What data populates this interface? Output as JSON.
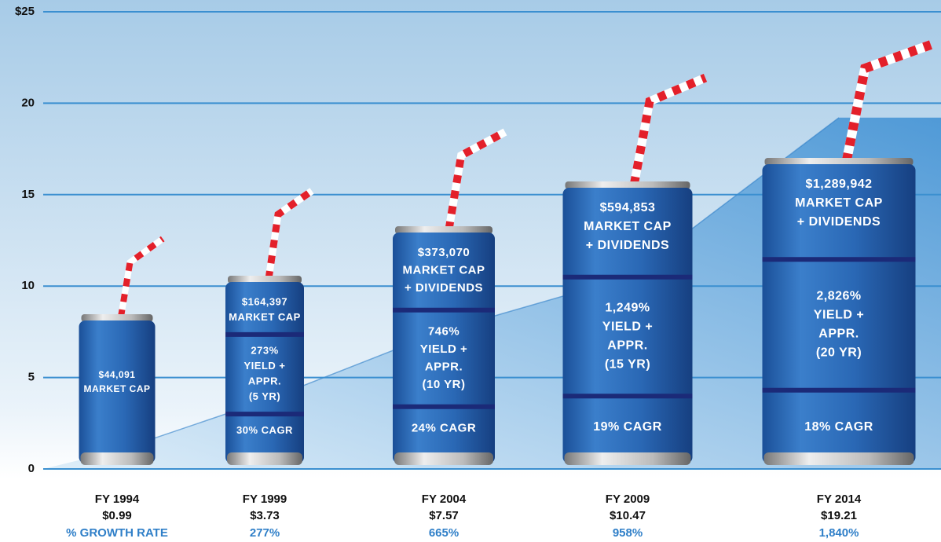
{
  "chart_data": {
    "type": "can-growth",
    "categories": [
      "FY 1994",
      "FY 1999",
      "FY 2004",
      "FY 2009",
      "FY 2014"
    ],
    "values": [
      0.99,
      3.73,
      7.57,
      10.47,
      19.21
    ],
    "value_labels": [
      "$0.99",
      "$3.73",
      "$7.57",
      "$10.47",
      "$19.21"
    ],
    "growth_rates": [
      "% GROWTH RATE",
      "277%",
      "665%",
      "958%",
      "1,840%"
    ],
    "ylim": [
      0,
      25
    ],
    "yticks": [
      0,
      5,
      10,
      15,
      20,
      {
        "value": 25,
        "label": "$25"
      }
    ],
    "grid": true,
    "color": "#2f7fc8",
    "cans": [
      {
        "sections": [
          [
            "$44,091",
            "MARKET CAP"
          ]
        ]
      },
      {
        "sections": [
          [
            "$164,397",
            "MARKET CAP"
          ],
          [
            "273%",
            "YIELD +",
            "APPR.",
            "(5 YR)"
          ],
          [
            "30% CAGR"
          ]
        ]
      },
      {
        "sections": [
          [
            "$373,070",
            "MARKET CAP",
            "+ DIVIDENDS"
          ],
          [
            "746%",
            "YIELD +",
            "APPR.",
            "(10 YR)"
          ],
          [
            "24% CAGR"
          ]
        ]
      },
      {
        "sections": [
          [
            "$594,853",
            "MARKET CAP",
            "+ DIVIDENDS"
          ],
          [
            "1,249%",
            "YIELD +",
            "APPR.",
            "(15 YR)"
          ],
          [
            "19% CAGR"
          ]
        ]
      },
      {
        "sections": [
          [
            "$1,289,942",
            "MARKET CAP",
            "+ DIVIDENDS"
          ],
          [
            "2,826%",
            "YIELD +",
            "APPR.",
            "(20 YR)"
          ],
          [
            "18% CAGR"
          ]
        ]
      }
    ]
  }
}
